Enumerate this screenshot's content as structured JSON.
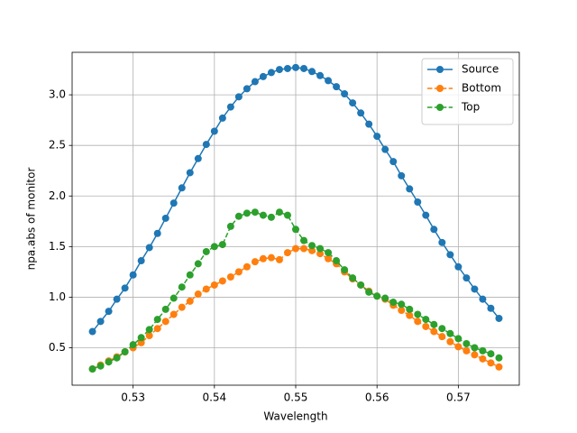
{
  "chart_data": {
    "type": "line",
    "xlabel": "Wavelength",
    "ylabel": "npa.abs of monitor",
    "x": [
      0.525,
      0.526,
      0.527,
      0.528,
      0.529,
      0.53,
      0.531,
      0.532,
      0.533,
      0.534,
      0.535,
      0.536,
      0.537,
      0.538,
      0.539,
      0.54,
      0.541,
      0.542,
      0.543,
      0.544,
      0.545,
      0.546,
      0.547,
      0.548,
      0.549,
      0.55,
      0.551,
      0.552,
      0.553,
      0.554,
      0.555,
      0.556,
      0.557,
      0.558,
      0.559,
      0.56,
      0.561,
      0.562,
      0.563,
      0.564,
      0.565,
      0.566,
      0.567,
      0.568,
      0.569,
      0.57,
      0.571,
      0.572,
      0.573,
      0.574,
      0.575
    ],
    "series": [
      {
        "name": "Source",
        "color": "#1f77b4",
        "linestyle": "solid",
        "values": [
          0.66,
          0.76,
          0.86,
          0.98,
          1.09,
          1.22,
          1.36,
          1.49,
          1.63,
          1.78,
          1.93,
          2.08,
          2.23,
          2.37,
          2.51,
          2.64,
          2.77,
          2.88,
          2.98,
          3.06,
          3.13,
          3.18,
          3.22,
          3.25,
          3.26,
          3.27,
          3.26,
          3.23,
          3.19,
          3.14,
          3.08,
          3.01,
          2.92,
          2.82,
          2.71,
          2.59,
          2.46,
          2.34,
          2.2,
          2.07,
          1.94,
          1.81,
          1.67,
          1.54,
          1.42,
          1.3,
          1.19,
          1.08,
          0.98,
          0.89,
          0.79
        ]
      },
      {
        "name": "Bottom",
        "color": "#ff7f0e",
        "linestyle": "dashed",
        "values": [
          0.29,
          0.33,
          0.37,
          0.41,
          0.46,
          0.5,
          0.55,
          0.62,
          0.69,
          0.76,
          0.83,
          0.9,
          0.96,
          1.03,
          1.08,
          1.12,
          1.16,
          1.2,
          1.25,
          1.3,
          1.35,
          1.38,
          1.39,
          1.37,
          1.44,
          1.48,
          1.48,
          1.46,
          1.43,
          1.38,
          1.33,
          1.25,
          1.18,
          1.12,
          1.06,
          1.01,
          0.98,
          0.92,
          0.87,
          0.82,
          0.76,
          0.71,
          0.66,
          0.61,
          0.56,
          0.51,
          0.47,
          0.43,
          0.39,
          0.35,
          0.31
        ]
      },
      {
        "name": "Top",
        "color": "#2ca02c",
        "linestyle": "dashed",
        "values": [
          0.29,
          0.32,
          0.36,
          0.4,
          0.46,
          0.53,
          0.6,
          0.68,
          0.78,
          0.88,
          0.99,
          1.1,
          1.22,
          1.33,
          1.45,
          1.5,
          1.52,
          1.7,
          1.8,
          1.83,
          1.84,
          1.81,
          1.79,
          1.84,
          1.81,
          1.67,
          1.56,
          1.51,
          1.48,
          1.44,
          1.36,
          1.27,
          1.19,
          1.12,
          1.05,
          1.01,
          0.99,
          0.95,
          0.93,
          0.88,
          0.83,
          0.78,
          0.73,
          0.69,
          0.64,
          0.59,
          0.54,
          0.5,
          0.47,
          0.44,
          0.4
        ]
      }
    ],
    "xlim": [
      0.5225,
      0.5775
    ],
    "xticks": [
      0.53,
      0.54,
      0.55,
      0.56,
      0.57
    ],
    "ylim": [
      0.13,
      3.42
    ],
    "yticks": [
      0.5,
      {
        "value": 1,
        "label": "1.0"
      },
      1.5,
      {
        "value": 2,
        "label": "2.0"
      },
      2.5,
      {
        "value": 3,
        "label": "3.0"
      }
    ],
    "grid": true,
    "legend": "upper right"
  }
}
